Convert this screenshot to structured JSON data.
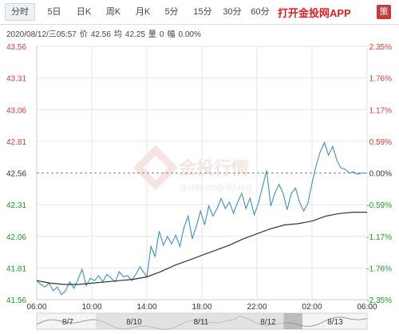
{
  "tabs": [
    {
      "label": "分时",
      "active": true
    },
    {
      "label": "5日"
    },
    {
      "label": "日K"
    },
    {
      "label": "周K"
    },
    {
      "label": "月K"
    },
    {
      "label": "5分"
    },
    {
      "label": "15分"
    },
    {
      "label": "30分"
    },
    {
      "label": "60分"
    }
  ],
  "app_link": "打开金投网APP",
  "app_icon_text": "策",
  "info": {
    "datetime": "2020/08/12/三05:57",
    "price_label": "价",
    "price": "42.56",
    "avg_label": "均",
    "avg": "42.25",
    "volume_label": "量",
    "volume": "0",
    "change_label": "幅",
    "change": "0.00%"
  },
  "watermark": {
    "brand": "金投行情",
    "site": "quote.cngold.org"
  },
  "colors": {
    "up": "#e03a2f",
    "down": "#1a9a2a",
    "price_line": "#3d8fc7",
    "avg_line": "#333333",
    "grid": "#e6e6e6",
    "baseline": "#888888"
  },
  "chart_data": {
    "type": "line",
    "y_left_ticks": [
      "43.56",
      "43.31",
      "43.06",
      "42.81",
      "42.56",
      "42.31",
      "42.06",
      "41.81",
      "41.56"
    ],
    "y_right_ticks": [
      "2.35%",
      "1.76%",
      "1.17%",
      "0.59%",
      "0.00%",
      "-0.59%",
      "-1.17%",
      "-1.76%",
      "-2.35%"
    ],
    "ylim": [
      41.56,
      43.56
    ],
    "baseline": 42.56,
    "x_ticks": [
      "06:00",
      "10:00",
      "14:00",
      "18:00",
      "22:00",
      "02:00",
      "06:00"
    ],
    "x_range_hours": [
      0,
      24
    ],
    "navigator_labels": [
      "8/7",
      "8/10",
      "8/11",
      "8/12",
      "8/13"
    ],
    "series": [
      {
        "type": "price",
        "points": [
          [
            0.0,
            41.71
          ],
          [
            0.3,
            41.68
          ],
          [
            0.6,
            41.66
          ],
          [
            0.9,
            41.69
          ],
          [
            1.2,
            41.63
          ],
          [
            1.5,
            41.66
          ],
          [
            1.8,
            41.6
          ],
          [
            2.1,
            41.63
          ],
          [
            2.4,
            41.7
          ],
          [
            2.7,
            41.65
          ],
          [
            3.0,
            41.72
          ],
          [
            3.3,
            41.8
          ],
          [
            3.6,
            41.67
          ],
          [
            3.9,
            41.73
          ],
          [
            4.2,
            41.71
          ],
          [
            4.5,
            41.75
          ],
          [
            4.8,
            41.7
          ],
          [
            5.1,
            41.76
          ],
          [
            5.4,
            41.73
          ],
          [
            5.7,
            41.7
          ],
          [
            6.0,
            41.78
          ],
          [
            6.3,
            41.74
          ],
          [
            6.6,
            41.75
          ],
          [
            6.9,
            41.71
          ],
          [
            7.2,
            41.76
          ],
          [
            7.5,
            41.82
          ],
          [
            7.8,
            41.77
          ],
          [
            8.0,
            41.74
          ],
          [
            8.3,
            41.98
          ],
          [
            8.6,
            41.9
          ],
          [
            8.9,
            42.1
          ],
          [
            9.2,
            41.99
          ],
          [
            9.5,
            42.06
          ],
          [
            9.8,
            42.0
          ],
          [
            10.1,
            42.07
          ],
          [
            10.4,
            41.98
          ],
          [
            10.7,
            42.13
          ],
          [
            11.0,
            42.22
          ],
          [
            11.3,
            42.04
          ],
          [
            11.6,
            42.14
          ],
          [
            11.9,
            42.26
          ],
          [
            12.2,
            42.15
          ],
          [
            12.5,
            42.3
          ],
          [
            12.8,
            42.22
          ],
          [
            13.1,
            42.28
          ],
          [
            13.4,
            42.36
          ],
          [
            13.7,
            42.28
          ],
          [
            14.0,
            42.33
          ],
          [
            14.3,
            42.24
          ],
          [
            14.6,
            42.33
          ],
          [
            14.9,
            42.4
          ],
          [
            15.2,
            42.28
          ],
          [
            15.5,
            42.36
          ],
          [
            15.8,
            42.23
          ],
          [
            16.1,
            42.32
          ],
          [
            16.4,
            42.45
          ],
          [
            16.7,
            42.58
          ],
          [
            17.0,
            42.3
          ],
          [
            17.3,
            42.4
          ],
          [
            17.6,
            42.47
          ],
          [
            17.9,
            42.4
          ],
          [
            18.2,
            42.27
          ],
          [
            18.5,
            42.4
          ],
          [
            18.8,
            42.44
          ],
          [
            19.1,
            42.33
          ],
          [
            19.4,
            42.26
          ],
          [
            19.7,
            42.32
          ],
          [
            20.0,
            42.48
          ],
          [
            20.3,
            42.62
          ],
          [
            20.6,
            42.73
          ],
          [
            20.9,
            42.8
          ],
          [
            21.2,
            42.7
          ],
          [
            21.5,
            42.77
          ],
          [
            21.8,
            42.66
          ],
          [
            22.1,
            42.6
          ],
          [
            22.4,
            42.59
          ],
          [
            22.7,
            42.56
          ],
          [
            23.0,
            42.57
          ],
          [
            23.3,
            42.55
          ],
          [
            23.6,
            42.56
          ],
          [
            24.0,
            42.56
          ]
        ]
      },
      {
        "type": "average",
        "points": [
          [
            0.0,
            41.71
          ],
          [
            1.0,
            41.69
          ],
          [
            2.0,
            41.68
          ],
          [
            3.0,
            41.68
          ],
          [
            4.0,
            41.69
          ],
          [
            5.0,
            41.7
          ],
          [
            6.0,
            41.71
          ],
          [
            7.0,
            41.72
          ],
          [
            8.0,
            41.74
          ],
          [
            9.0,
            41.78
          ],
          [
            10.0,
            41.83
          ],
          [
            11.0,
            41.87
          ],
          [
            12.0,
            41.91
          ],
          [
            13.0,
            41.95
          ],
          [
            14.0,
            41.99
          ],
          [
            15.0,
            42.04
          ],
          [
            16.0,
            42.08
          ],
          [
            17.0,
            42.12
          ],
          [
            18.0,
            42.15
          ],
          [
            19.0,
            42.16
          ],
          [
            20.0,
            42.18
          ],
          [
            21.0,
            42.22
          ],
          [
            22.0,
            42.24
          ],
          [
            23.0,
            42.25
          ],
          [
            24.0,
            42.25
          ]
        ]
      }
    ]
  }
}
